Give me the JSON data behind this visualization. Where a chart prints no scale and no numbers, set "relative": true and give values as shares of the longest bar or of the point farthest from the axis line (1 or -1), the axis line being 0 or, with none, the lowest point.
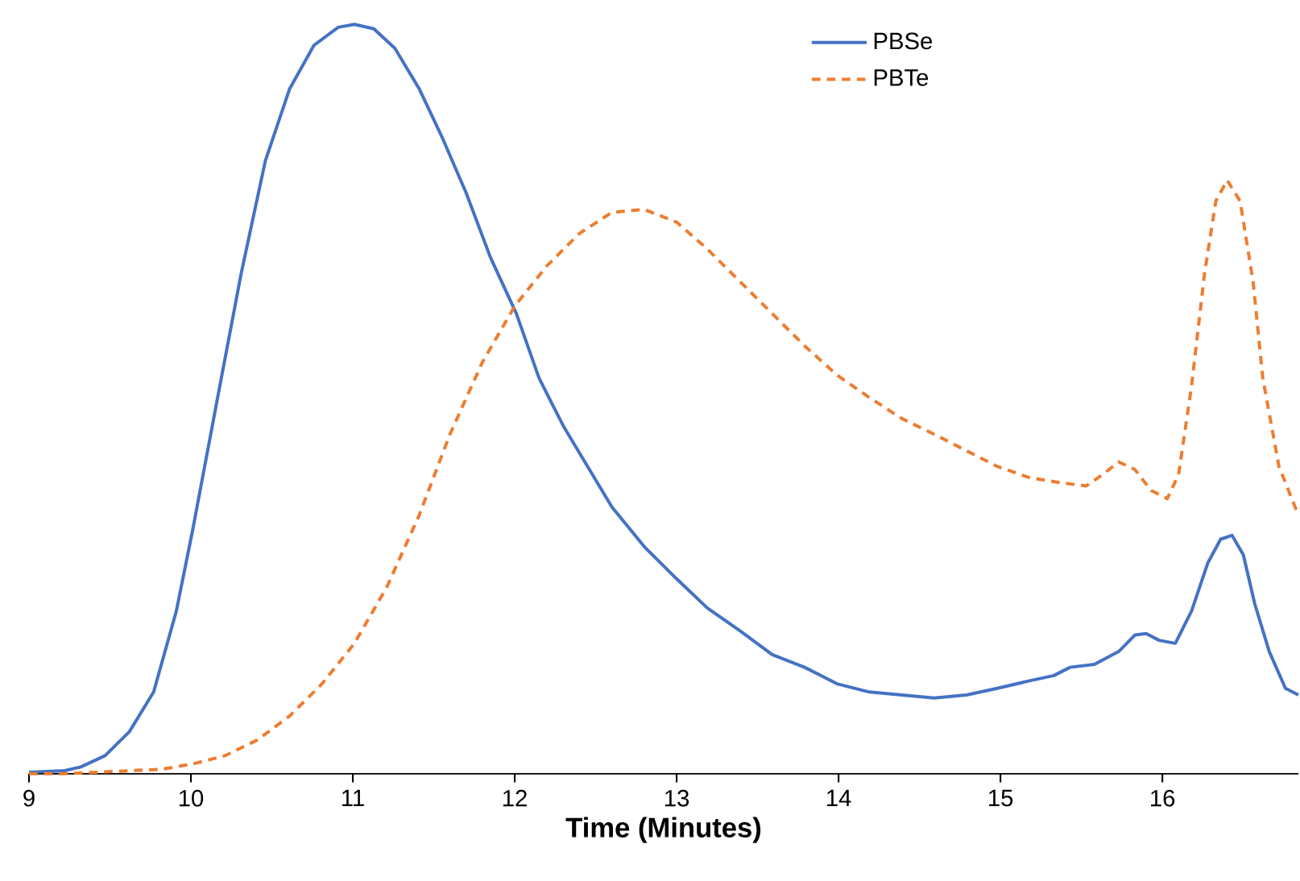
{
  "chart_data": {
    "type": "line",
    "relative": true,
    "xlabel": "Time (Minutes)",
    "xlim": [
      9,
      16.84
    ],
    "xticks": [
      9,
      10,
      11,
      12,
      13,
      14,
      15,
      16
    ],
    "tick_labels": "x",
    "legend": "top right",
    "grid": false,
    "marker": "none",
    "series": [
      {
        "name": "PBSe",
        "color": "#4472c4",
        "line_style": "solid",
        "x": [
          9.0,
          9.22,
          9.32,
          9.47,
          9.62,
          9.77,
          9.91,
          10.01,
          10.16,
          10.31,
          10.46,
          10.61,
          10.76,
          10.91,
          11.01,
          11.13,
          11.26,
          11.41,
          11.55,
          11.7,
          11.85,
          12.01,
          12.15,
          12.3,
          12.45,
          12.6,
          12.8,
          13.0,
          13.19,
          13.39,
          13.59,
          13.79,
          13.99,
          14.19,
          14.39,
          14.59,
          14.79,
          14.98,
          15.18,
          15.33,
          15.43,
          15.58,
          15.73,
          15.83,
          15.9,
          15.98,
          16.08,
          16.18,
          16.28,
          16.36,
          16.43,
          16.5,
          16.57,
          16.66,
          16.76,
          16.84
        ],
        "values": [
          0.002,
          0.004,
          0.009,
          0.024,
          0.056,
          0.109,
          0.217,
          0.324,
          0.496,
          0.667,
          0.818,
          0.914,
          0.972,
          0.996,
          1,
          0.994,
          0.968,
          0.914,
          0.85,
          0.775,
          0.689,
          0.614,
          0.528,
          0.464,
          0.41,
          0.356,
          0.303,
          0.26,
          0.221,
          0.191,
          0.159,
          0.142,
          0.12,
          0.109,
          0.105,
          0.101,
          0.105,
          0.114,
          0.124,
          0.131,
          0.142,
          0.146,
          0.163,
          0.185,
          0.187,
          0.178,
          0.174,
          0.217,
          0.281,
          0.313,
          0.318,
          0.292,
          0.227,
          0.163,
          0.114,
          0.105
        ]
      },
      {
        "name": "PBTe",
        "color": "#ed7d31",
        "line_style": "dashed",
        "x": [
          9.0,
          9.22,
          9.42,
          9.62,
          9.82,
          10.01,
          10.21,
          10.41,
          10.61,
          10.81,
          11.01,
          11.21,
          11.41,
          11.6,
          11.8,
          12.0,
          12.2,
          12.4,
          12.6,
          12.8,
          13.0,
          13.19,
          13.39,
          13.59,
          13.79,
          13.99,
          14.19,
          14.39,
          14.59,
          14.79,
          14.98,
          15.18,
          15.38,
          15.53,
          15.63,
          15.73,
          15.83,
          15.93,
          16.03,
          16.1,
          16.18,
          16.26,
          16.33,
          16.4,
          16.48,
          16.56,
          16.62,
          16.72,
          16.84
        ],
        "values": [
          0.0,
          0.0,
          0.002,
          0.004,
          0.006,
          0.013,
          0.024,
          0.045,
          0.077,
          0.12,
          0.174,
          0.249,
          0.345,
          0.453,
          0.549,
          0.624,
          0.678,
          0.721,
          0.749,
          0.753,
          0.736,
          0.7,
          0.657,
          0.614,
          0.571,
          0.532,
          0.502,
          0.474,
          0.453,
          0.431,
          0.41,
          0.395,
          0.388,
          0.384,
          0.399,
          0.416,
          0.406,
          0.378,
          0.367,
          0.399,
          0.517,
          0.667,
          0.764,
          0.792,
          0.764,
          0.657,
          0.528,
          0.41,
          0.345
        ]
      }
    ]
  }
}
